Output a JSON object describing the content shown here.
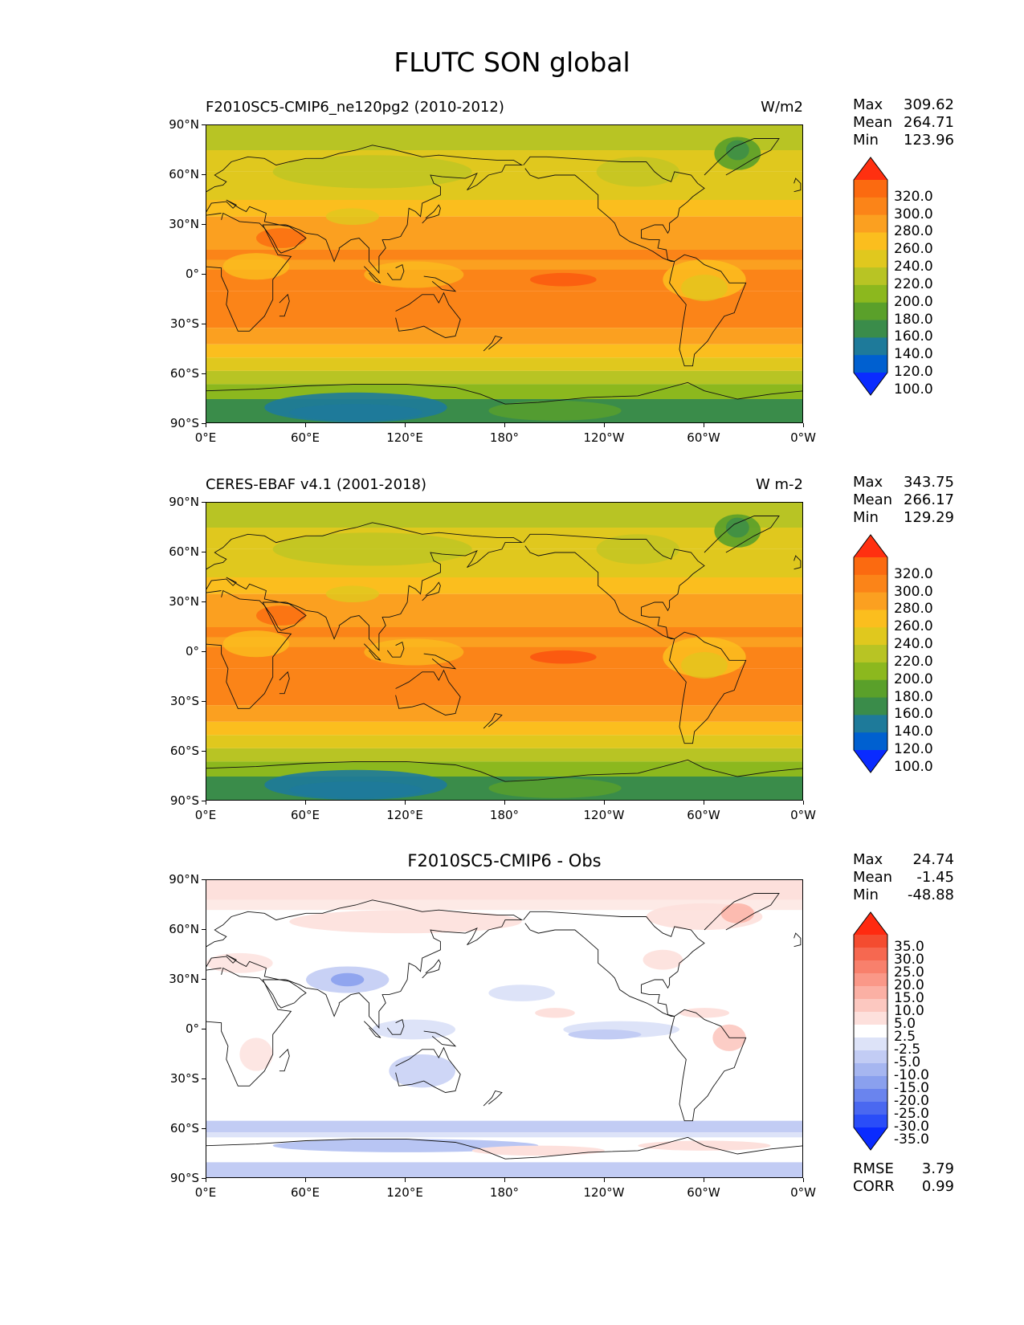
{
  "title": "FLUTC SON global",
  "panels": [
    {
      "left_title": "F2010SC5-CMIP6_ne120pg2 (2010-2012)",
      "center_title": "",
      "units": "W/m2",
      "stats": {
        "max_label": "Max",
        "max": "309.62",
        "mean_label": "Mean",
        "mean": "264.71",
        "min_label": "Min",
        "min": "123.96"
      },
      "colorbar": "abs",
      "kind": "model"
    },
    {
      "left_title": "CERES-EBAF v4.1 (2001-2018)",
      "center_title": "",
      "units": "W m-2",
      "stats": {
        "max_label": "Max",
        "max": "343.75",
        "mean_label": "Mean",
        "mean": "266.17",
        "min_label": "Min",
        "min": "129.29"
      },
      "colorbar": "abs",
      "kind": "obs"
    },
    {
      "left_title": "",
      "center_title": "F2010SC5-CMIP6 - Obs",
      "units": "",
      "stats": {
        "max_label": "Max",
        "max": "24.74",
        "mean_label": "Mean",
        "mean": "-1.45",
        "min_label": "Min",
        "min": "-48.88"
      },
      "colorbar": "diff",
      "kind": "diff",
      "extra": {
        "rmse_label": "RMSE",
        "rmse": "3.79",
        "corr_label": "CORR",
        "corr": "0.99"
      }
    }
  ],
  "lat_ticks": [
    "90°N",
    "60°N",
    "30°N",
    "0°",
    "30°S",
    "60°S",
    "90°S"
  ],
  "lon_ticks": [
    "0°E",
    "60°E",
    "120°E",
    "180°",
    "120°W",
    "60°W",
    "0°W"
  ],
  "colorbars": {
    "abs": {
      "labels": [
        "320.0",
        "300.0",
        "280.0",
        "260.0",
        "240.0",
        "220.0",
        "200.0",
        "180.0",
        "160.0",
        "140.0",
        "120.0",
        "100.0"
      ],
      "colors": [
        "#0a2bff",
        "#0060d0",
        "#1e7a9a",
        "#3a8c4a",
        "#5aa02a",
        "#8cb81e",
        "#b8c424",
        "#e0c81e",
        "#fbbe1e",
        "#fba020",
        "#fb8418",
        "#fb6a10",
        "#ff3010"
      ]
    },
    "diff": {
      "labels": [
        "35.0",
        "30.0",
        "25.0",
        "20.0",
        "15.0",
        "10.0",
        "5.0",
        "2.5",
        "-2.5",
        "-5.0",
        "-10.0",
        "-15.0",
        "-20.0",
        "-25.0",
        "-30.0",
        "-35.0"
      ],
      "colors": [
        "#0a2bff",
        "#2a4df8",
        "#4a68f0",
        "#6a84ee",
        "#8aa0ee",
        "#a6b6f0",
        "#c2ccf4",
        "#dde3f8",
        "#ffffff",
        "#fde0dc",
        "#fcc8c0",
        "#fbb0a4",
        "#fa9888",
        "#f8806c",
        "#f66850",
        "#f44c30",
        "#ff2a10"
      ]
    }
  }
}
